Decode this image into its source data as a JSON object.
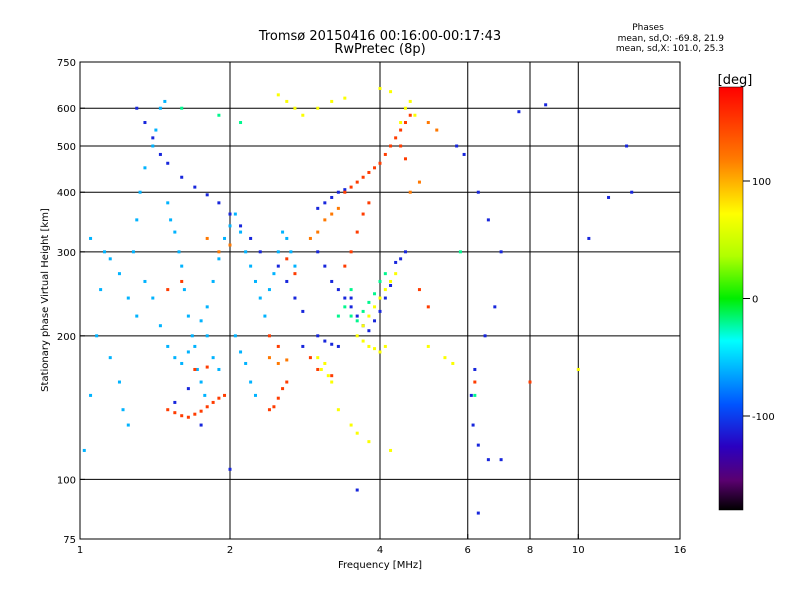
{
  "chart_data": {
    "type": "scatter",
    "title": "Tromsø 20150416 00:16:00-00:17:43",
    "subtitle": "RwPretec (8p)",
    "xlabel": "Frequency [MHz]",
    "ylabel": "Stationary phase Virtual Height [km]",
    "x_scale": "log",
    "y_scale": "log",
    "xlim": [
      1,
      16
    ],
    "ylim": [
      75,
      750
    ],
    "x_ticks": [
      1,
      2,
      4,
      6,
      8,
      10,
      16
    ],
    "y_ticks": [
      75,
      100,
      200,
      300,
      400,
      500,
      600,
      750
    ],
    "x_gridlines": [
      2,
      4,
      6,
      8,
      10
    ],
    "y_gridlines": [
      100,
      200,
      300,
      400,
      500,
      600
    ],
    "grid": true,
    "legend": {
      "heading": "Phases",
      "lines": [
        "mean, sd,O: -69.8, 21.9",
        "mean, sd,X: 101.0, 25.3"
      ],
      "placement": "top-right"
    },
    "colorbar": {
      "label": "[deg]",
      "ticks": [
        100,
        0,
        -100
      ],
      "range": [
        -180,
        180
      ],
      "placement": "right"
    },
    "series": [
      {
        "phase_deg": -60,
        "points": [
          [
            1.02,
            115
          ],
          [
            1.05,
            150
          ],
          [
            1.08,
            200
          ],
          [
            1.1,
            250
          ],
          [
            1.12,
            300
          ],
          [
            1.05,
            320
          ],
          [
            1.15,
            180
          ],
          [
            1.2,
            160
          ],
          [
            1.22,
            140
          ],
          [
            1.25,
            130
          ],
          [
            1.28,
            300
          ],
          [
            1.3,
            350
          ],
          [
            1.32,
            400
          ],
          [
            1.35,
            450
          ],
          [
            1.4,
            500
          ],
          [
            1.42,
            540
          ],
          [
            1.45,
            600
          ],
          [
            1.48,
            620
          ],
          [
            1.5,
            380
          ],
          [
            1.52,
            350
          ],
          [
            1.55,
            330
          ],
          [
            1.58,
            300
          ],
          [
            1.6,
            280
          ],
          [
            1.62,
            250
          ],
          [
            1.65,
            220
          ],
          [
            1.68,
            200
          ],
          [
            1.7,
            190
          ],
          [
            1.72,
            170
          ],
          [
            1.75,
            160
          ],
          [
            1.78,
            150
          ],
          [
            1.8,
            230
          ],
          [
            1.85,
            260
          ],
          [
            1.9,
            290
          ],
          [
            1.95,
            320
          ],
          [
            2.0,
            340
          ],
          [
            2.05,
            360
          ],
          [
            2.1,
            330
          ],
          [
            2.15,
            300
          ],
          [
            2.2,
            280
          ],
          [
            2.25,
            260
          ],
          [
            2.3,
            240
          ],
          [
            2.35,
            220
          ],
          [
            2.4,
            250
          ],
          [
            2.45,
            270
          ],
          [
            2.5,
            300
          ],
          [
            2.55,
            330
          ],
          [
            2.6,
            320
          ],
          [
            2.65,
            300
          ],
          [
            2.7,
            280
          ],
          [
            1.35,
            260
          ],
          [
            1.4,
            240
          ],
          [
            1.45,
            210
          ],
          [
            1.5,
            190
          ],
          [
            1.55,
            180
          ],
          [
            1.6,
            175
          ],
          [
            1.65,
            185
          ],
          [
            1.3,
            220
          ],
          [
            1.25,
            240
          ],
          [
            1.2,
            270
          ],
          [
            1.15,
            290
          ],
          [
            2.05,
            200
          ],
          [
            2.1,
            185
          ],
          [
            2.15,
            175
          ],
          [
            2.2,
            160
          ],
          [
            2.25,
            150
          ],
          [
            1.9,
            170
          ],
          [
            1.85,
            180
          ],
          [
            1.8,
            200
          ],
          [
            1.75,
            215
          ]
        ]
      },
      {
        "phase_deg": -110,
        "points": [
          [
            1.3,
            600
          ],
          [
            1.35,
            560
          ],
          [
            1.4,
            520
          ],
          [
            1.45,
            480
          ],
          [
            1.5,
            460
          ],
          [
            1.6,
            430
          ],
          [
            1.7,
            410
          ],
          [
            1.8,
            395
          ],
          [
            1.9,
            380
          ],
          [
            2.0,
            360
          ],
          [
            2.1,
            340
          ],
          [
            2.2,
            320
          ],
          [
            2.3,
            300
          ],
          [
            2.5,
            280
          ],
          [
            2.6,
            260
          ],
          [
            2.7,
            240
          ],
          [
            2.8,
            225
          ],
          [
            3.0,
            300
          ],
          [
            3.1,
            280
          ],
          [
            3.2,
            260
          ],
          [
            3.3,
            250
          ],
          [
            3.4,
            240
          ],
          [
            3.5,
            230
          ],
          [
            3.6,
            220
          ],
          [
            3.7,
            210
          ],
          [
            3.8,
            205
          ],
          [
            3.9,
            215
          ],
          [
            4.0,
            225
          ],
          [
            4.1,
            240
          ],
          [
            4.2,
            255
          ],
          [
            3.0,
            370
          ],
          [
            3.1,
            380
          ],
          [
            3.2,
            390
          ],
          [
            3.3,
            400
          ],
          [
            3.4,
            405
          ],
          [
            4.3,
            285
          ],
          [
            4.4,
            290
          ],
          [
            4.5,
            300
          ],
          [
            3.0,
            200
          ],
          [
            3.1,
            195
          ],
          [
            3.2,
            192
          ],
          [
            3.3,
            190
          ],
          [
            6.3,
            400
          ],
          [
            6.6,
            350
          ],
          [
            7.0,
            300
          ],
          [
            6.8,
            230
          ],
          [
            6.5,
            200
          ],
          [
            6.2,
            170
          ],
          [
            6.1,
            150
          ],
          [
            6.15,
            130
          ],
          [
            6.3,
            118
          ],
          [
            6.6,
            110
          ],
          [
            7.0,
            110
          ],
          [
            6.3,
            85
          ],
          [
            3.6,
            95
          ],
          [
            12.5,
            500
          ],
          [
            12.8,
            400
          ],
          [
            11.5,
            390
          ],
          [
            10.5,
            320
          ],
          [
            8.6,
            610
          ],
          [
            7.6,
            590
          ],
          [
            5.9,
            480
          ],
          [
            5.7,
            500
          ],
          [
            2.0,
            105
          ],
          [
            2.8,
            190
          ],
          [
            3.5,
            240
          ],
          [
            1.55,
            145
          ],
          [
            1.65,
            155
          ],
          [
            1.75,
            130
          ]
        ]
      },
      {
        "phase_deg": 150,
        "points": [
          [
            1.5,
            140
          ],
          [
            1.55,
            138
          ],
          [
            1.6,
            136
          ],
          [
            1.65,
            135
          ],
          [
            1.7,
            137
          ],
          [
            1.75,
            139
          ],
          [
            1.8,
            142
          ],
          [
            1.85,
            145
          ],
          [
            1.9,
            148
          ],
          [
            1.95,
            150
          ],
          [
            2.4,
            140
          ],
          [
            2.45,
            142
          ],
          [
            2.5,
            148
          ],
          [
            2.55,
            155
          ],
          [
            2.6,
            160
          ],
          [
            1.7,
            170
          ],
          [
            1.8,
            172
          ],
          [
            3.4,
            400
          ],
          [
            3.5,
            410
          ],
          [
            3.6,
            420
          ],
          [
            3.7,
            430
          ],
          [
            3.8,
            440
          ],
          [
            3.9,
            450
          ],
          [
            4.0,
            460
          ],
          [
            4.1,
            480
          ],
          [
            4.2,
            500
          ],
          [
            4.3,
            520
          ],
          [
            4.4,
            540
          ],
          [
            4.5,
            560
          ],
          [
            4.6,
            580
          ],
          [
            4.4,
            500
          ],
          [
            4.5,
            470
          ],
          [
            3.8,
            380
          ],
          [
            3.7,
            360
          ],
          [
            3.6,
            330
          ],
          [
            3.5,
            300
          ],
          [
            3.4,
            280
          ],
          [
            2.6,
            290
          ],
          [
            2.7,
            270
          ],
          [
            2.4,
            200
          ],
          [
            2.5,
            190
          ],
          [
            8.0,
            160
          ],
          [
            5.0,
            230
          ],
          [
            4.8,
            250
          ],
          [
            6.2,
            160
          ],
          [
            1.6,
            260
          ],
          [
            1.5,
            250
          ],
          [
            2.9,
            180
          ],
          [
            3.0,
            170
          ],
          [
            3.2,
            165
          ]
        ]
      },
      {
        "phase_deg": 70,
        "points": [
          [
            3.0,
            180
          ],
          [
            3.05,
            170
          ],
          [
            3.1,
            175
          ],
          [
            3.15,
            165
          ],
          [
            3.2,
            160
          ],
          [
            3.6,
            200
          ],
          [
            3.7,
            195
          ],
          [
            3.8,
            190
          ],
          [
            3.9,
            188
          ],
          [
            4.0,
            185
          ],
          [
            4.1,
            190
          ],
          [
            3.7,
            210
          ],
          [
            3.8,
            220
          ],
          [
            3.9,
            230
          ],
          [
            4.0,
            240
          ],
          [
            4.1,
            250
          ],
          [
            4.2,
            260
          ],
          [
            4.3,
            270
          ],
          [
            4.5,
            600
          ],
          [
            4.6,
            620
          ],
          [
            4.7,
            580
          ],
          [
            4.4,
            560
          ],
          [
            2.5,
            640
          ],
          [
            2.6,
            620
          ],
          [
            2.7,
            600
          ],
          [
            2.8,
            580
          ],
          [
            3.0,
            600
          ],
          [
            3.2,
            620
          ],
          [
            3.4,
            630
          ],
          [
            4.0,
            660
          ],
          [
            4.2,
            650
          ],
          [
            3.3,
            140
          ],
          [
            3.5,
            130
          ],
          [
            3.6,
            125
          ],
          [
            3.8,
            120
          ],
          [
            4.2,
            115
          ],
          [
            5.0,
            190
          ],
          [
            5.4,
            180
          ],
          [
            5.6,
            175
          ],
          [
            10.0,
            170
          ]
        ]
      },
      {
        "phase_deg": -20,
        "points": [
          [
            3.4,
            230
          ],
          [
            3.5,
            220
          ],
          [
            3.6,
            215
          ],
          [
            3.7,
            225
          ],
          [
            3.8,
            235
          ],
          [
            3.9,
            245
          ],
          [
            4.0,
            260
          ],
          [
            4.1,
            270
          ],
          [
            3.5,
            250
          ],
          [
            3.3,
            220
          ],
          [
            6.2,
            150
          ],
          [
            5.8,
            300
          ],
          [
            1.6,
            600
          ],
          [
            1.9,
            580
          ],
          [
            2.1,
            560
          ]
        ]
      },
      {
        "phase_deg": 120,
        "points": [
          [
            2.4,
            180
          ],
          [
            2.5,
            175
          ],
          [
            2.6,
            178
          ],
          [
            3.1,
            350
          ],
          [
            3.2,
            360
          ],
          [
            3.0,
            330
          ],
          [
            2.9,
            320
          ],
          [
            3.3,
            370
          ],
          [
            4.6,
            400
          ],
          [
            4.8,
            420
          ],
          [
            1.8,
            320
          ],
          [
            1.9,
            300
          ],
          [
            2.0,
            310
          ],
          [
            5.0,
            560
          ],
          [
            5.2,
            540
          ]
        ]
      }
    ]
  }
}
